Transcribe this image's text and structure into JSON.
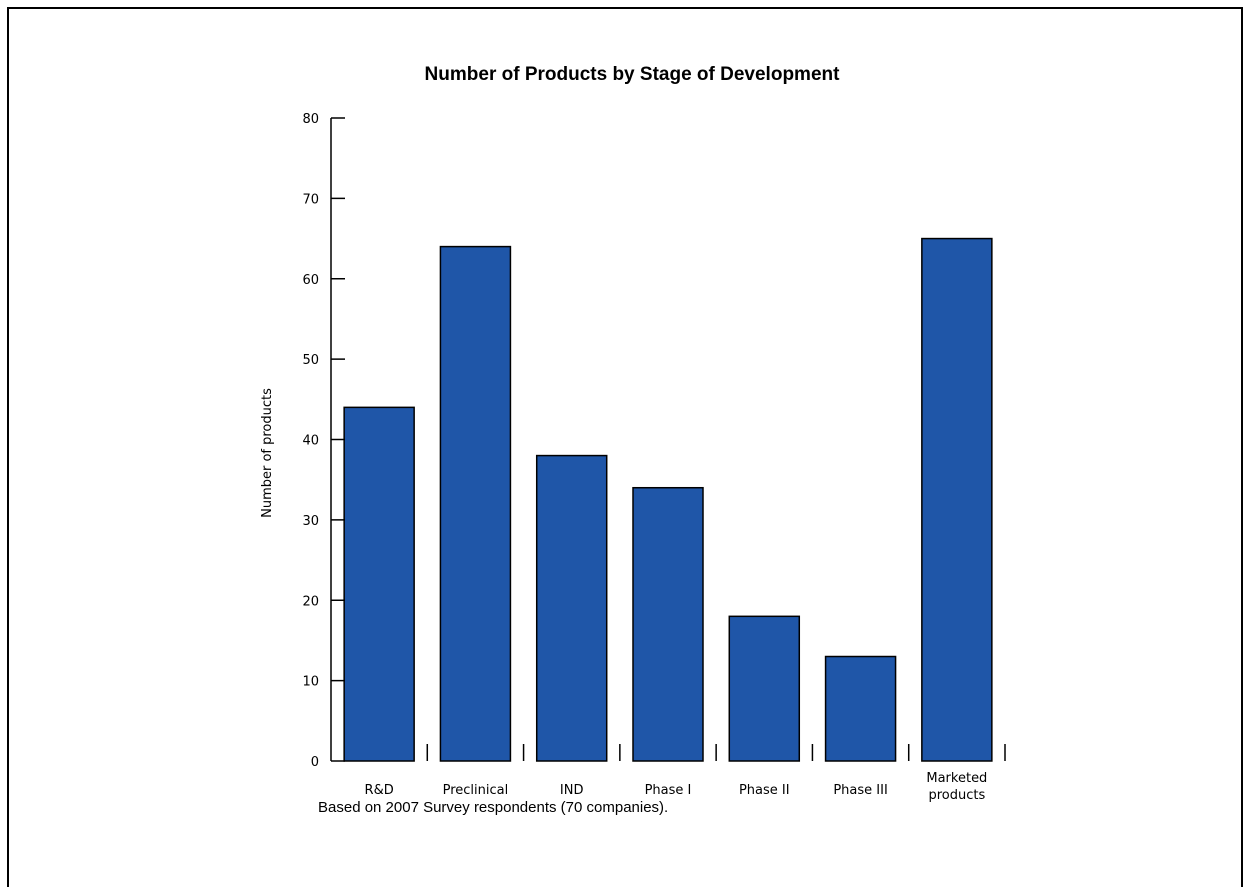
{
  "chart_data": {
    "type": "bar",
    "title": "Number of Products by Stage of Development",
    "ylabel": "Number of products",
    "xlabel": "",
    "categories": [
      "R&D",
      "Preclinical",
      "IND",
      "Phase I",
      "Phase II",
      "Phase III",
      "Marketed products"
    ],
    "category_lines": [
      [
        "R&D"
      ],
      [
        "Preclinical"
      ],
      [
        "IND"
      ],
      [
        "Phase I"
      ],
      [
        "Phase II"
      ],
      [
        "Phase III"
      ],
      [
        "Marketed",
        "products"
      ]
    ],
    "values": [
      44,
      64,
      38,
      34,
      18,
      13,
      65
    ],
    "ylim": [
      0,
      80
    ],
    "yticks": [
      0,
      10,
      20,
      30,
      40,
      50,
      60,
      70,
      80
    ],
    "bar_color": "#1f56a8",
    "grid": false,
    "legend": "none",
    "footnote": "Based on 2007 Survey respondents (70 companies)."
  }
}
